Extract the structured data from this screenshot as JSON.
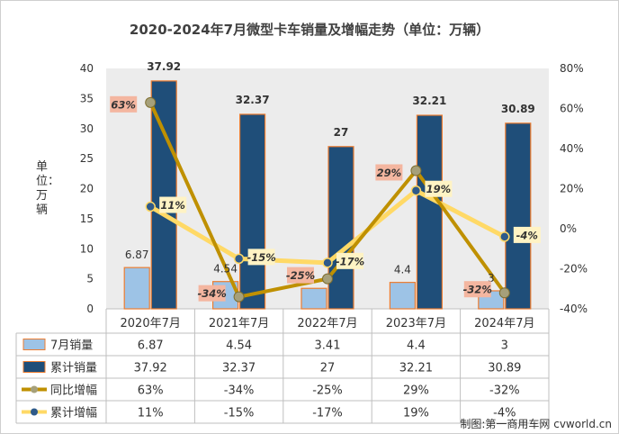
{
  "chart_data": {
    "type": "bar",
    "title": "2020-2024年7月微型卡车销量及增幅走势（单位：万辆）",
    "ylabel": "单位：万辆",
    "ylim": [
      0,
      40
    ],
    "y2lim": [
      -40,
      80
    ],
    "y_ticks": [
      "0",
      "5",
      "10",
      "15",
      "20",
      "25",
      "30",
      "35",
      "40"
    ],
    "y2_ticks": [
      "-40%",
      "-20%",
      "0%",
      "20%",
      "40%",
      "60%",
      "80%"
    ],
    "categories": [
      "2020年7月",
      "2021年7月",
      "2022年7月",
      "2023年7月",
      "2024年7月"
    ],
    "series": [
      {
        "name": "7月销量",
        "kind": "bar",
        "axis": "left",
        "values": [
          6.87,
          4.54,
          3.41,
          4.4,
          3
        ],
        "labels": [
          "6.87",
          "4.54",
          "",
          "4.4",
          "3"
        ],
        "table": [
          "6.87",
          "4.54",
          "3.41",
          "4.4",
          "3"
        ],
        "color": "#9dc3e6"
      },
      {
        "name": "累计销量",
        "kind": "bar",
        "axis": "left",
        "values": [
          37.92,
          32.37,
          27,
          32.21,
          30.89
        ],
        "labels": [
          "37.92",
          "32.37",
          "27",
          "32.21",
          "30.89"
        ],
        "table": [
          "37.92",
          "32.37",
          "27",
          "32.21",
          "30.89"
        ],
        "color": "#1f4e79"
      },
      {
        "name": "同比增幅",
        "kind": "line",
        "axis": "right",
        "values": [
          63,
          -34,
          -25,
          29,
          -32
        ],
        "labels": [
          "63%",
          "-34%",
          "-25%",
          "29%",
          "-32%"
        ],
        "table": [
          "63%",
          "-34%",
          "-25%",
          "29%",
          "-32%"
        ],
        "color": "#bf9000"
      },
      {
        "name": "累计增幅",
        "kind": "line",
        "axis": "right",
        "values": [
          11,
          -15,
          -17,
          19,
          -4
        ],
        "labels": [
          "11%",
          "-15%",
          "-17%",
          "19%",
          "-4%"
        ],
        "table": [
          "11%",
          "-15%",
          "-17%",
          "19%",
          "-4%"
        ],
        "color": "#ffd966"
      }
    ],
    "grid": false,
    "legend": "data-table"
  },
  "credit": "制图:第一商用车网 cvworld.cn"
}
